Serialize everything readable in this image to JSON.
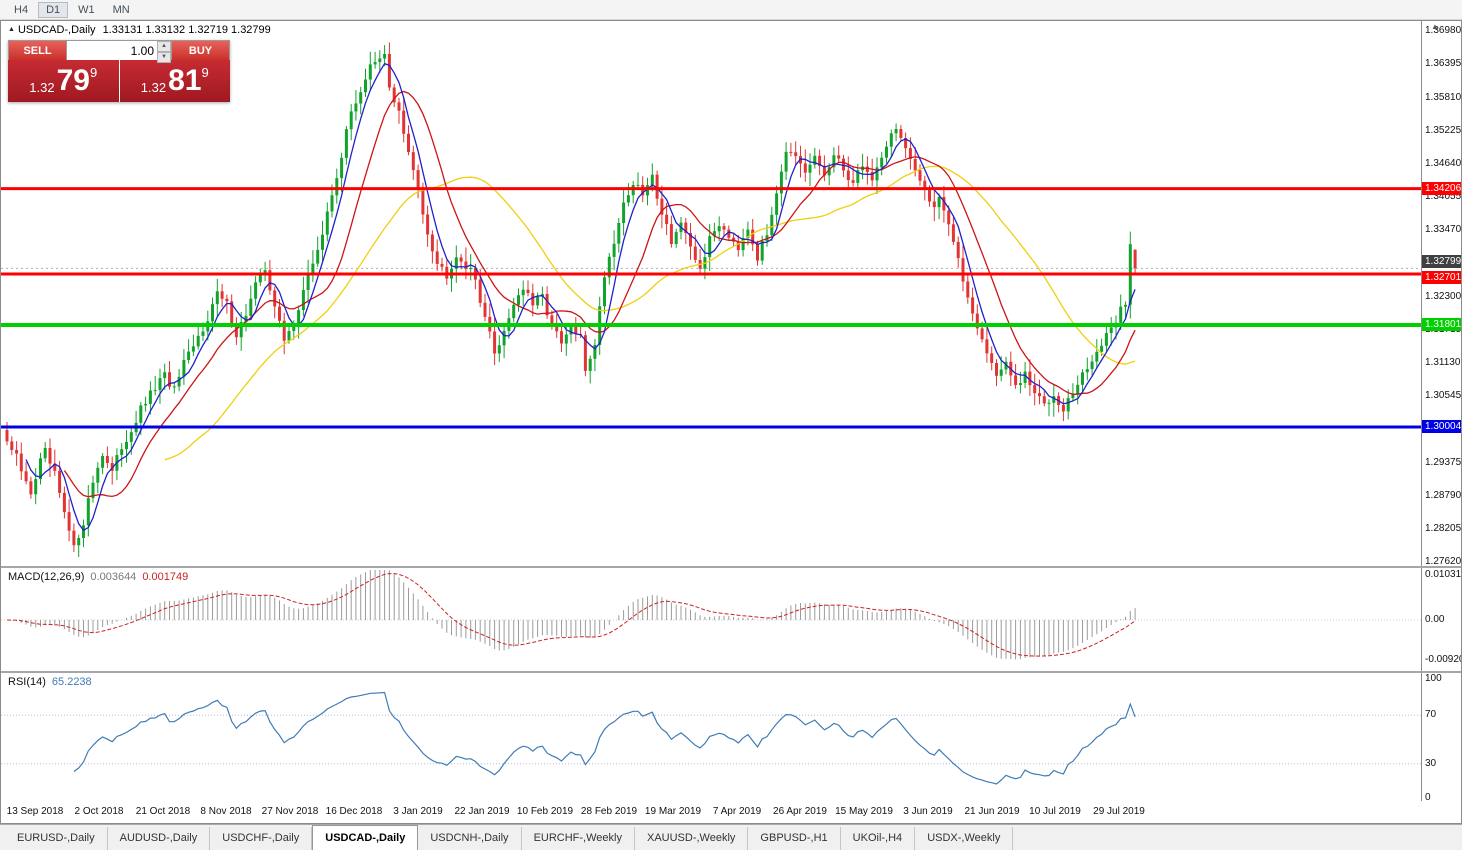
{
  "toolbar": {
    "timeframes": [
      {
        "label": "H4",
        "active": false
      },
      {
        "label": "D1",
        "active": true
      },
      {
        "label": "W1",
        "active": false
      },
      {
        "label": "MN",
        "active": false
      }
    ]
  },
  "chart": {
    "title": {
      "marker": "▲",
      "symbol": "USDCAD-,Daily",
      "ohlc": "1.33131 1.33132 1.32719 1.32799"
    },
    "trade_panel": {
      "sell_label": "SELL",
      "buy_label": "BUY",
      "volume": "1.00",
      "spin_up": "▲",
      "spin_down": "▼",
      "sell_price": {
        "prefix": "1.32",
        "big": "79",
        "sup": "9"
      },
      "buy_price": {
        "prefix": "1.32",
        "big": "81",
        "sup": "9"
      }
    },
    "bid_tag": {
      "label": "1.32799",
      "price": 1.32799,
      "color": "#3f3f3f"
    },
    "scroll_marker": "▲"
  },
  "chart_data": {
    "type": "candlestick",
    "symbol": "USDCAD",
    "timeframe": "Daily",
    "bars_total": 237,
    "up_color": "#12a32c",
    "down_color": "#e23434",
    "y_range": [
      1.2755,
      1.3716
    ],
    "price_ticks": [
      "1.36980",
      "1.36395",
      "1.35810",
      "1.35225",
      "1.34640",
      "1.34055",
      "1.33470",
      "1.32885",
      "1.32300",
      "1.31715",
      "1.31130",
      "1.30545",
      "1.29960",
      "1.29375",
      "1.28790",
      "1.28205",
      "1.27620"
    ],
    "x_labels": [
      "13 Sep 2018",
      "2 Oct 2018",
      "21 Oct 2018",
      "8 Nov 2018",
      "27 Nov 2018",
      "16 Dec 2018",
      "3 Jan 2019",
      "22 Jan 2019",
      "10 Feb 2019",
      "28 Feb 2019",
      "19 Mar 2019",
      "7 Apr 2019",
      "26 Apr 2019",
      "15 May 2019",
      "3 Jun 2019",
      "21 Jun 2019",
      "10 Jul 2019",
      "29 Jul 2019"
    ],
    "price_path_anchors": [
      [
        0,
        1.2975
      ],
      [
        2,
        1.2945
      ],
      [
        4,
        1.29
      ],
      [
        5,
        1.2885
      ],
      [
        7,
        1.294
      ],
      [
        8,
        1.2955
      ],
      [
        10,
        1.2915
      ],
      [
        12,
        1.2845
      ],
      [
        14,
        1.2785
      ],
      [
        16,
        1.2835
      ],
      [
        18,
        1.2905
      ],
      [
        20,
        1.2955
      ],
      [
        22,
        1.292
      ],
      [
        24,
        1.2965
      ],
      [
        26,
        1.2995
      ],
      [
        28,
        1.303
      ],
      [
        31,
        1.307
      ],
      [
        33,
        1.309
      ],
      [
        35,
        1.3065
      ],
      [
        37,
        1.311
      ],
      [
        39,
        1.314
      ],
      [
        41,
        1.3175
      ],
      [
        44,
        1.3235
      ],
      [
        46,
        1.3215
      ],
      [
        48,
        1.3165
      ],
      [
        50,
        1.32
      ],
      [
        52,
        1.325
      ],
      [
        54,
        1.328
      ],
      [
        56,
        1.3215
      ],
      [
        58,
        1.315
      ],
      [
        60,
        1.3185
      ],
      [
        62,
        1.324
      ],
      [
        64,
        1.329
      ],
      [
        66,
        1.334
      ],
      [
        68,
        1.341
      ],
      [
        70,
        1.348
      ],
      [
        72,
        1.3555
      ],
      [
        74,
        1.3595
      ],
      [
        76,
        1.3635
      ],
      [
        78,
        1.3645
      ],
      [
        79,
        1.3655
      ],
      [
        80,
        1.36
      ],
      [
        82,
        1.3555
      ],
      [
        84,
        1.348
      ],
      [
        86,
        1.342
      ],
      [
        88,
        1.3345
      ],
      [
        90,
        1.329
      ],
      [
        92,
        1.327
      ],
      [
        94,
        1.3305
      ],
      [
        96,
        1.3285
      ],
      [
        98,
        1.326
      ],
      [
        100,
        1.3195
      ],
      [
        102,
        1.313
      ],
      [
        104,
        1.317
      ],
      [
        106,
        1.322
      ],
      [
        108,
        1.3245
      ],
      [
        110,
        1.3215
      ],
      [
        112,
        1.323
      ],
      [
        114,
        1.318
      ],
      [
        116,
        1.3145
      ],
      [
        118,
        1.3175
      ],
      [
        120,
        1.3155
      ],
      [
        121,
        1.31
      ],
      [
        123,
        1.315
      ],
      [
        125,
        1.327
      ],
      [
        127,
        1.333
      ],
      [
        129,
        1.3395
      ],
      [
        131,
        1.343
      ],
      [
        133,
        1.341
      ],
      [
        135,
        1.344
      ],
      [
        137,
        1.338
      ],
      [
        139,
        1.333
      ],
      [
        141,
        1.336
      ],
      [
        143,
        1.331
      ],
      [
        145,
        1.328
      ],
      [
        147,
        1.333
      ],
      [
        149,
        1.336
      ],
      [
        151,
        1.334
      ],
      [
        153,
        1.332
      ],
      [
        155,
        1.3355
      ],
      [
        157,
        1.33
      ],
      [
        159,
        1.334
      ],
      [
        161,
        1.342
      ],
      [
        163,
        1.349
      ],
      [
        165,
        1.347
      ],
      [
        167,
        1.3445
      ],
      [
        169,
        1.3475
      ],
      [
        171,
        1.3445
      ],
      [
        173,
        1.3475
      ],
      [
        175,
        1.3455
      ],
      [
        177,
        1.343
      ],
      [
        179,
        1.3465
      ],
      [
        181,
        1.3435
      ],
      [
        183,
        1.348
      ],
      [
        185,
        1.3515
      ],
      [
        186,
        1.353
      ],
      [
        188,
        1.349
      ],
      [
        190,
        1.3445
      ],
      [
        192,
        1.342
      ],
      [
        194,
        1.339
      ],
      [
        195,
        1.341
      ],
      [
        197,
        1.336
      ],
      [
        199,
        1.329
      ],
      [
        201,
        1.323
      ],
      [
        203,
        1.318
      ],
      [
        205,
        1.313
      ],
      [
        207,
        1.3095
      ],
      [
        209,
        1.311
      ],
      [
        211,
        1.307
      ],
      [
        213,
        1.309
      ],
      [
        215,
        1.306
      ],
      [
        217,
        1.304
      ],
      [
        219,
        1.306
      ],
      [
        221,
        1.3035
      ],
      [
        223,
        1.306
      ],
      [
        225,
        1.309
      ],
      [
        227,
        1.312
      ],
      [
        229,
        1.3145
      ],
      [
        231,
        1.317
      ],
      [
        233,
        1.321
      ],
      [
        234,
        1.322
      ],
      [
        235,
        1.332
      ]
    ],
    "last_bar": {
      "o": 1.33131,
      "h": 1.33132,
      "l": 1.32719,
      "c": 1.32799
    },
    "moving_averages": [
      {
        "period": 34,
        "color": "#f0cf10"
      },
      {
        "period": 13,
        "color": "#cc1515"
      },
      {
        "period": 5,
        "color": "#2020cc"
      }
    ],
    "hlines": [
      {
        "price": 1.34206,
        "label": "1.34206",
        "color": "#ff0000",
        "width": 3,
        "tag_dy": 0
      },
      {
        "price": 1.32701,
        "label": "1.32701",
        "color": "#ff0000",
        "width": 3,
        "tag_dy": 4
      },
      {
        "price": 1.31801,
        "label": "1.31801",
        "color": "#00d000",
        "width": 4,
        "tag_dy": 0
      },
      {
        "price": 1.30004,
        "label": "1.30004",
        "color": "#0000e6",
        "width": 3,
        "tag_dy": 0
      }
    ],
    "indicators": [
      {
        "name": "MACD",
        "params": "(12,26,9)",
        "value1": "0.003644",
        "value2": "0.001749",
        "axis_labels": [
          "0.010311",
          "0.00",
          "-0.009203"
        ],
        "axis_values": [
          0.010311,
          0,
          -0.009203
        ],
        "histogram_color": "#9b9b9b",
        "signal_color": "#cc2222"
      },
      {
        "name": "RSI",
        "params": "(14)",
        "value": "65.2238",
        "axis_labels": [
          "100",
          "70",
          "30",
          "0"
        ],
        "axis_values": [
          100,
          70,
          30,
          0
        ],
        "levels": [
          70,
          30
        ],
        "line_color": "#3f7cb6"
      }
    ]
  },
  "indicator_panels": {
    "macd_label": "MACD(12,26,9)",
    "macd_v1": "0.003644",
    "macd_v2": "0.001749",
    "rsi_label": "RSI(14)",
    "rsi_value": "65.2238"
  },
  "tabbar": {
    "tabs": [
      {
        "label": "EURUSD-,Daily",
        "active": false
      },
      {
        "label": "AUDUSD-,Daily",
        "active": false
      },
      {
        "label": "USDCHF-,Daily",
        "active": false
      },
      {
        "label": "USDCAD-,Daily",
        "active": true
      },
      {
        "label": "USDCNH-,Daily",
        "active": false
      },
      {
        "label": "EURCHF-,Weekly",
        "active": false
      },
      {
        "label": "XAUUSD-,Weekly",
        "active": false
      },
      {
        "label": "GBPUSD-,H1",
        "active": false
      },
      {
        "label": "UKOil-,H4",
        "active": false
      },
      {
        "label": "USDX-,Weekly",
        "active": false
      }
    ]
  }
}
